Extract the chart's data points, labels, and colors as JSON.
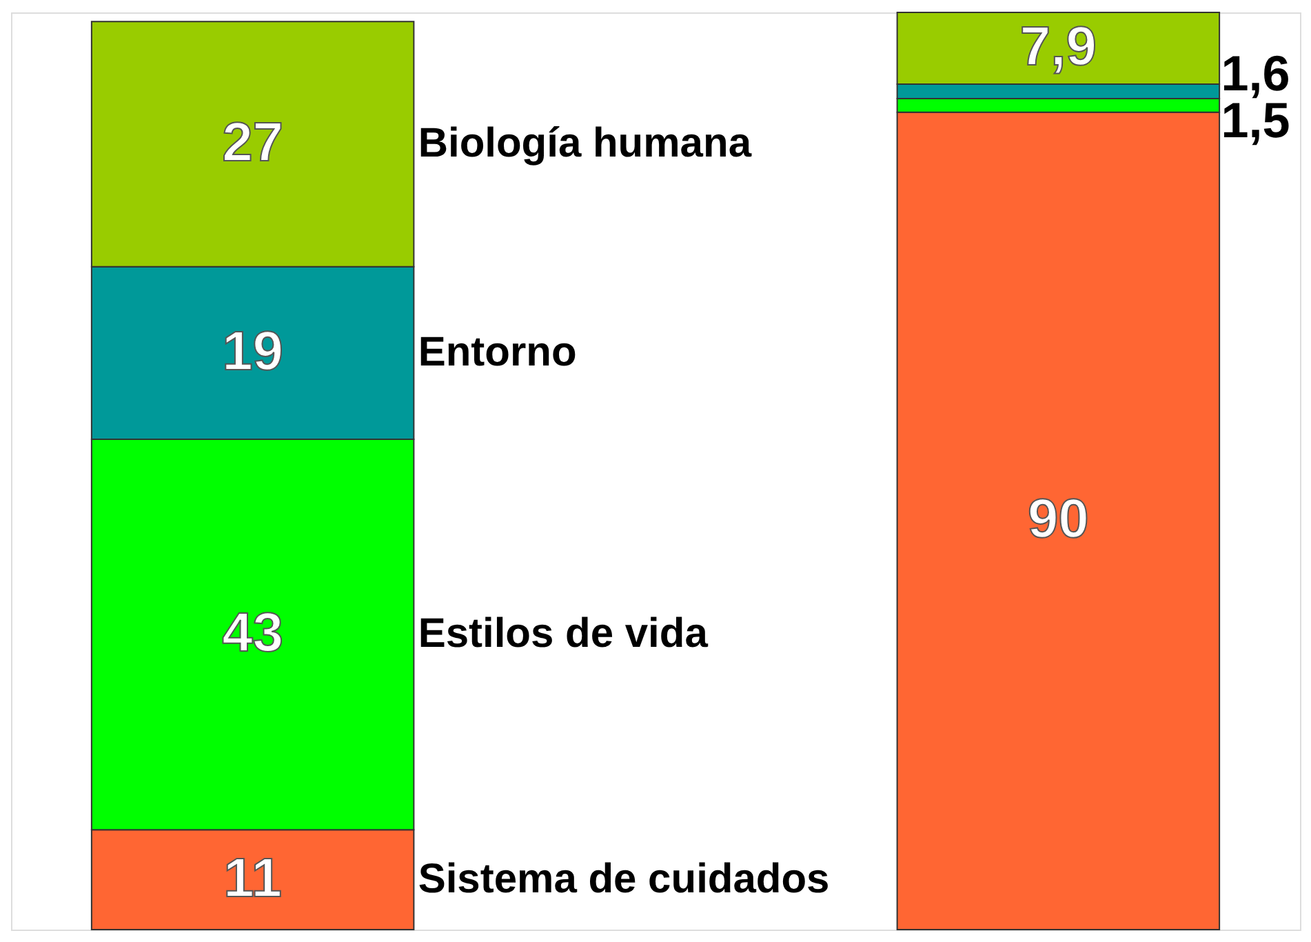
{
  "chart_data": {
    "type": "bar",
    "stacked": true,
    "categories": [
      null,
      null
    ],
    "legend": false,
    "tick_labels": false,
    "series": [
      {
        "name": "Sistema de cuidados",
        "color": "#ff6633",
        "values": [
          11,
          90
        ],
        "value_labels": [
          "11",
          "90"
        ]
      },
      {
        "name": "Estilos de vida",
        "color": "#00ff00",
        "values": [
          43,
          1.5
        ],
        "value_labels": [
          "43",
          "1,5"
        ]
      },
      {
        "name": "Entorno",
        "color": "#009999",
        "values": [
          19,
          1.6
        ],
        "value_labels": [
          "19",
          "1,6"
        ]
      },
      {
        "name": "Biología humana",
        "color": "#99cc00",
        "values": [
          27,
          7.9
        ],
        "value_labels": [
          "27",
          "7,9"
        ]
      }
    ]
  }
}
